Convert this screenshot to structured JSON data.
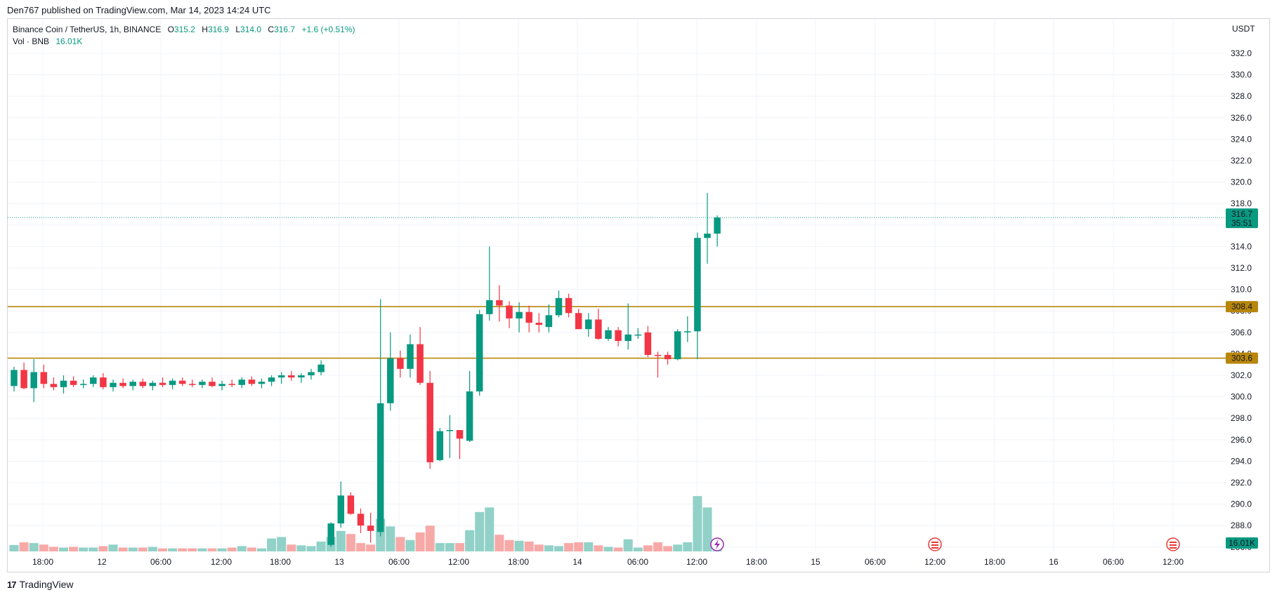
{
  "header": {
    "published": "Den767 published on TradingView.com, Mar 14, 2023 14:24 UTC"
  },
  "legend": {
    "symbol": "Binance Coin / TetherUS, 1h, BINANCE",
    "open_label": "O",
    "open": "315.2",
    "high_label": "H",
    "high": "316.9",
    "low_label": "L",
    "low": "314.0",
    "close_label": "C",
    "close": "316.7",
    "change": "+1.6 (+0.51%)",
    "vol_label": "Vol · BNB",
    "vol": "16.01K"
  },
  "footer": {
    "logo_text": "TradingView"
  },
  "colors": {
    "up": "#089981",
    "down": "#f23645",
    "up_vol": "#91d1c8",
    "down_vol": "#f7a9a7",
    "level": "#b8860b",
    "grid": "#f0f3fa"
  },
  "chart_data": {
    "type": "candlestick",
    "currency": "USDT",
    "ylim": [
      286,
      334
    ],
    "y_ticks": [
      "332.0",
      "330.0",
      "328.0",
      "326.0",
      "324.0",
      "322.0",
      "320.0",
      "318.0",
      "316.0",
      "314.0",
      "312.0",
      "310.0",
      "308.0",
      "306.0",
      "304.0",
      "302.0",
      "300.0",
      "298.0",
      "296.0",
      "294.0",
      "292.0",
      "290.0",
      "288.0",
      "286.0"
    ],
    "x_ticks": [
      "18:00",
      "12",
      "06:00",
      "12:00",
      "18:00",
      "13",
      "06:00",
      "12:00",
      "18:00",
      "14",
      "06:00",
      "12:00",
      "18:00",
      "15",
      "06:00",
      "12:00",
      "18:00",
      "16",
      "06:00",
      "12:00"
    ],
    "horizontal_levels": [
      {
        "value": 308.4,
        "label": "308.4"
      },
      {
        "value": 303.6,
        "label": "303.6"
      }
    ],
    "last_price": {
      "value": 316.7,
      "label": "316.7",
      "countdown": "35:51"
    },
    "volume_badge": "16.01K",
    "candles": [
      {
        "o": 301.0,
        "h": 302.8,
        "l": 300.5,
        "c": 302.5,
        "v": 8.5
      },
      {
        "o": 302.5,
        "h": 303.2,
        "l": 300.7,
        "c": 300.8,
        "v": 12
      },
      {
        "o": 300.8,
        "h": 303.5,
        "l": 299.5,
        "c": 302.3,
        "v": 11
      },
      {
        "o": 302.3,
        "h": 303.0,
        "l": 300.8,
        "c": 301.2,
        "v": 9
      },
      {
        "o": 301.2,
        "h": 301.8,
        "l": 300.6,
        "c": 300.9,
        "v": 6
      },
      {
        "o": 300.9,
        "h": 302.0,
        "l": 300.3,
        "c": 301.5,
        "v": 5
      },
      {
        "o": 301.5,
        "h": 301.9,
        "l": 300.9,
        "c": 301.1,
        "v": 6
      },
      {
        "o": 301.1,
        "h": 301.6,
        "l": 300.8,
        "c": 301.2,
        "v": 5
      },
      {
        "o": 301.2,
        "h": 302.0,
        "l": 300.9,
        "c": 301.8,
        "v": 5
      },
      {
        "o": 301.8,
        "h": 302.2,
        "l": 300.7,
        "c": 300.9,
        "v": 7
      },
      {
        "o": 300.9,
        "h": 301.6,
        "l": 300.5,
        "c": 301.3,
        "v": 9
      },
      {
        "o": 301.3,
        "h": 301.7,
        "l": 300.8,
        "c": 301.0,
        "v": 5
      },
      {
        "o": 301.0,
        "h": 301.6,
        "l": 300.6,
        "c": 301.4,
        "v": 5
      },
      {
        "o": 301.4,
        "h": 301.7,
        "l": 300.8,
        "c": 301.0,
        "v": 5
      },
      {
        "o": 301.0,
        "h": 301.5,
        "l": 300.6,
        "c": 301.3,
        "v": 6
      },
      {
        "o": 301.3,
        "h": 301.8,
        "l": 300.9,
        "c": 301.1,
        "v": 4
      },
      {
        "o": 301.1,
        "h": 301.7,
        "l": 300.7,
        "c": 301.5,
        "v": 4
      },
      {
        "o": 301.5,
        "h": 301.8,
        "l": 301.0,
        "c": 301.2,
        "v": 4
      },
      {
        "o": 301.2,
        "h": 301.6,
        "l": 300.9,
        "c": 301.1,
        "v": 4
      },
      {
        "o": 301.1,
        "h": 301.6,
        "l": 300.8,
        "c": 301.4,
        "v": 4
      },
      {
        "o": 301.4,
        "h": 301.8,
        "l": 300.9,
        "c": 301.0,
        "v": 4
      },
      {
        "o": 301.0,
        "h": 301.5,
        "l": 300.6,
        "c": 301.2,
        "v": 4
      },
      {
        "o": 301.2,
        "h": 301.6,
        "l": 300.9,
        "c": 301.1,
        "v": 5
      },
      {
        "o": 301.1,
        "h": 301.8,
        "l": 300.8,
        "c": 301.6,
        "v": 7
      },
      {
        "o": 301.6,
        "h": 301.9,
        "l": 301.0,
        "c": 301.2,
        "v": 5
      },
      {
        "o": 301.2,
        "h": 301.7,
        "l": 300.8,
        "c": 301.4,
        "v": 4
      },
      {
        "o": 301.4,
        "h": 302.0,
        "l": 301.0,
        "c": 301.8,
        "v": 17
      },
      {
        "o": 301.8,
        "h": 302.3,
        "l": 301.2,
        "c": 302.0,
        "v": 19
      },
      {
        "o": 302.0,
        "h": 302.4,
        "l": 301.5,
        "c": 301.8,
        "v": 9
      },
      {
        "o": 301.8,
        "h": 302.2,
        "l": 301.3,
        "c": 302.0,
        "v": 8
      },
      {
        "o": 302.0,
        "h": 302.6,
        "l": 301.6,
        "c": 302.3,
        "v": 7
      },
      {
        "o": 302.3,
        "h": 303.4,
        "l": 302.0,
        "c": 303.0,
        "v": 13
      },
      {
        "o": 286.2,
        "h": 288.3,
        "l": 286.0,
        "c": 288.2,
        "v": 19
      },
      {
        "o": 288.2,
        "h": 292.1,
        "l": 287.8,
        "c": 290.8,
        "v": 27
      },
      {
        "o": 290.8,
        "h": 291.1,
        "l": 289.0,
        "c": 289.1,
        "v": 23
      },
      {
        "o": 289.1,
        "h": 289.6,
        "l": 287.3,
        "c": 288.0,
        "v": 11
      },
      {
        "o": 288.0,
        "h": 289.2,
        "l": 286.4,
        "c": 287.5,
        "v": 9
      },
      {
        "o": 287.4,
        "h": 309.1,
        "l": 287.0,
        "c": 299.4,
        "v": 43
      },
      {
        "o": 299.4,
        "h": 306.0,
        "l": 298.7,
        "c": 303.6,
        "v": 33
      },
      {
        "o": 303.6,
        "h": 304.3,
        "l": 301.8,
        "c": 302.6,
        "v": 19
      },
      {
        "o": 302.6,
        "h": 305.8,
        "l": 301.8,
        "c": 304.9,
        "v": 15
      },
      {
        "o": 304.9,
        "h": 306.5,
        "l": 301.1,
        "c": 301.3,
        "v": 25
      },
      {
        "o": 301.3,
        "h": 302.4,
        "l": 293.3,
        "c": 293.9,
        "v": 34
      },
      {
        "o": 294.1,
        "h": 297.1,
        "l": 294.0,
        "c": 296.8,
        "v": 11
      },
      {
        "o": 296.8,
        "h": 298.3,
        "l": 294.3,
        "c": 296.9,
        "v": 11
      },
      {
        "o": 296.9,
        "h": 296.9,
        "l": 294.2,
        "c": 296.1,
        "v": 11
      },
      {
        "o": 295.9,
        "h": 302.4,
        "l": 295.8,
        "c": 300.5,
        "v": 28
      },
      {
        "o": 300.5,
        "h": 308.1,
        "l": 300.1,
        "c": 307.7,
        "v": 52
      },
      {
        "o": 307.7,
        "h": 314.0,
        "l": 307.1,
        "c": 309.0,
        "v": 58
      },
      {
        "o": 309.0,
        "h": 310.4,
        "l": 307.0,
        "c": 308.5,
        "v": 22
      },
      {
        "o": 308.5,
        "h": 308.9,
        "l": 306.4,
        "c": 307.3,
        "v": 15
      },
      {
        "o": 307.3,
        "h": 308.8,
        "l": 306.0,
        "c": 307.9,
        "v": 14
      },
      {
        "o": 307.9,
        "h": 308.5,
        "l": 306.0,
        "c": 306.9,
        "v": 13
      },
      {
        "o": 306.9,
        "h": 307.8,
        "l": 306.0,
        "c": 306.7,
        "v": 9
      },
      {
        "o": 306.5,
        "h": 308.6,
        "l": 306.0,
        "c": 307.6,
        "v": 8
      },
      {
        "o": 307.6,
        "h": 309.9,
        "l": 307.4,
        "c": 309.2,
        "v": 7
      },
      {
        "o": 309.2,
        "h": 309.6,
        "l": 307.4,
        "c": 307.8,
        "v": 11
      },
      {
        "o": 307.8,
        "h": 308.2,
        "l": 306.3,
        "c": 306.3,
        "v": 12
      },
      {
        "o": 306.3,
        "h": 307.8,
        "l": 305.6,
        "c": 307.2,
        "v": 12
      },
      {
        "o": 307.2,
        "h": 308.2,
        "l": 305.3,
        "c": 305.4,
        "v": 8
      },
      {
        "o": 305.4,
        "h": 306.5,
        "l": 305.2,
        "c": 306.2,
        "v": 6
      },
      {
        "o": 306.2,
        "h": 306.5,
        "l": 304.7,
        "c": 305.2,
        "v": 5
      },
      {
        "o": 305.2,
        "h": 308.7,
        "l": 304.4,
        "c": 305.8,
        "v": 16
      },
      {
        "o": 305.8,
        "h": 306.4,
        "l": 305.4,
        "c": 305.8,
        "v": 5
      },
      {
        "o": 306.0,
        "h": 306.6,
        "l": 303.7,
        "c": 303.9,
        "v": 8
      },
      {
        "o": 303.9,
        "h": 304.2,
        "l": 301.8,
        "c": 303.8,
        "v": 12
      },
      {
        "o": 303.9,
        "h": 304.2,
        "l": 303.0,
        "c": 303.5,
        "v": 7
      },
      {
        "o": 303.5,
        "h": 306.3,
        "l": 303.4,
        "c": 306.1,
        "v": 9
      },
      {
        "o": 306.1,
        "h": 307.5,
        "l": 305.1,
        "c": 306.1,
        "v": 12
      },
      {
        "o": 306.1,
        "h": 315.3,
        "l": 303.5,
        "c": 314.8,
        "v": 73
      },
      {
        "o": 314.8,
        "h": 319.0,
        "l": 312.4,
        "c": 315.2,
        "v": 58
      },
      {
        "o": 315.2,
        "h": 316.9,
        "l": 314.0,
        "c": 316.7,
        "v": 16.01
      }
    ]
  }
}
